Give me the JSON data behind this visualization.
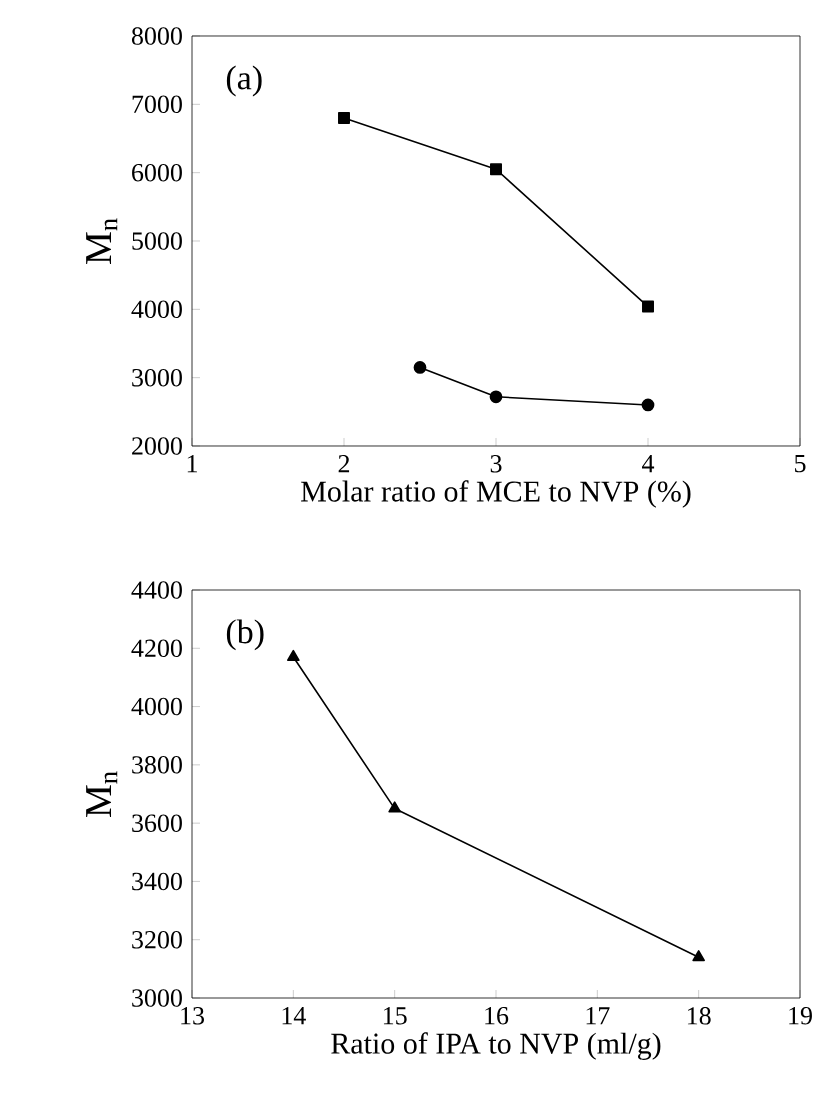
{
  "chart_data": [
    {
      "type": "line",
      "xlabel": "Molar ratio of MCE to NVP (%)",
      "ylabel": "M$_{n}$",
      "annotations": [
        "(a)"
      ],
      "xlim": [
        1,
        5
      ],
      "xticks": [
        1,
        2,
        3,
        4,
        5
      ],
      "ylim": [
        2000,
        8000
      ],
      "yticks": [
        2000,
        3000,
        4000,
        5000,
        6000,
        7000,
        8000
      ],
      "grid": false,
      "line_style": "solid",
      "series": [
        {
          "color": "#000000",
          "marker": "square",
          "x": [
            2,
            3,
            4
          ],
          "values": [
            6800,
            6050,
            4040
          ]
        },
        {
          "color": "#000000",
          "marker": "circle",
          "x": [
            2.5,
            3,
            4
          ],
          "values": [
            3150,
            2720,
            2600
          ]
        }
      ]
    },
    {
      "type": "line",
      "xlabel": "Ratio of IPA to NVP (ml/g)",
      "ylabel": "M$_{n}$",
      "annotations": [
        "(b)"
      ],
      "xlim": [
        13,
        19
      ],
      "xticks": [
        13,
        14,
        15,
        16,
        17,
        18,
        19
      ],
      "ylim": [
        3000,
        4400
      ],
      "yticks": [
        3000,
        3200,
        3400,
        3600,
        3800,
        4000,
        4200,
        4400
      ],
      "grid": false,
      "line_style": "solid",
      "series": [
        {
          "color": "#000000",
          "marker": "triangle",
          "x": [
            14,
            15,
            18
          ],
          "values": [
            4170,
            3650,
            3140
          ]
        }
      ]
    }
  ]
}
